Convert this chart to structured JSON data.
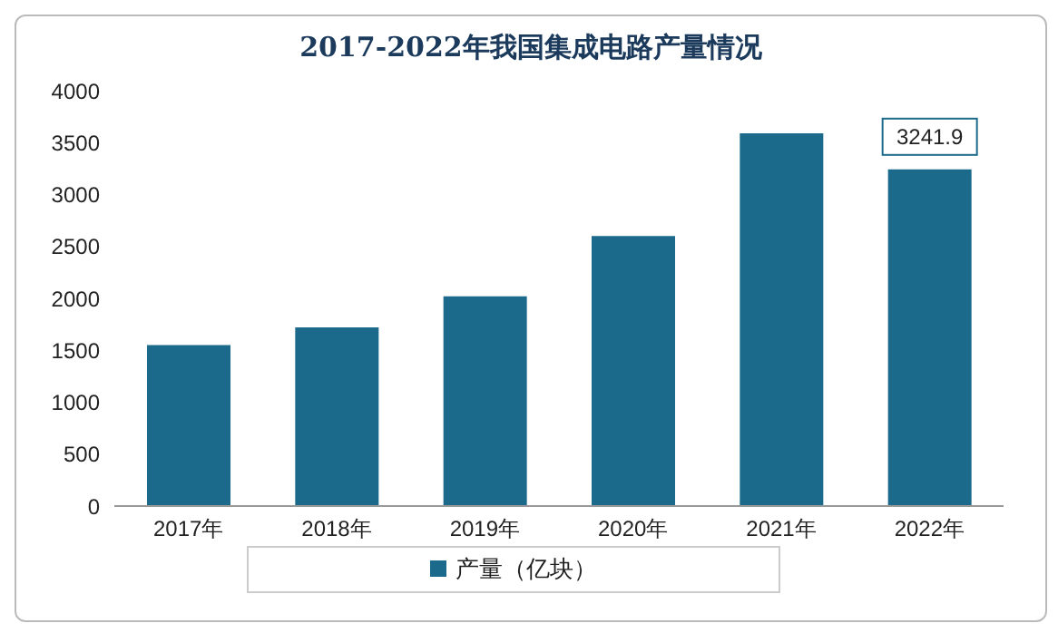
{
  "chart_data": {
    "type": "bar",
    "title": "2017-2022年我国集成电路产量情况",
    "categories": [
      "2017年",
      "2018年",
      "2019年",
      "2020年",
      "2021年",
      "2022年"
    ],
    "series": [
      {
        "name": "产量（亿块）",
        "color": "#1b6a8c",
        "values": [
          1550,
          1720,
          2020,
          2600,
          3590,
          3241.9
        ],
        "value_labels": [
          null,
          null,
          null,
          null,
          null,
          "3241.9"
        ]
      }
    ],
    "ylim": [
      0,
      4000
    ],
    "yticks": [
      0,
      500,
      1000,
      1500,
      2000,
      2500,
      3000,
      3500,
      4000
    ],
    "grid": false,
    "legend": "bottom"
  }
}
